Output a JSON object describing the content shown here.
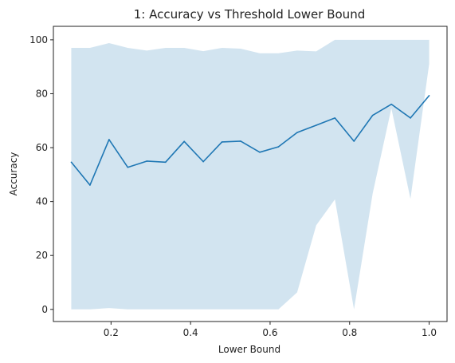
{
  "chart_data": {
    "type": "line",
    "title": "1: Accuracy vs Threshold Lower Bound",
    "xlabel": "Lower Bound",
    "ylabel": "Accuracy",
    "xlim": [
      0.055,
      1.045
    ],
    "ylim": [
      -4.5,
      105
    ],
    "xticks": [
      0.2,
      0.4,
      0.6,
      0.8,
      1.0
    ],
    "xtick_labels": [
      "0.2",
      "0.4",
      "0.6",
      "0.8",
      "1.0"
    ],
    "yticks": [
      0,
      20,
      40,
      60,
      80,
      100
    ],
    "ytick_labels": [
      "0",
      "20",
      "40",
      "60",
      "80",
      "100"
    ],
    "grid": false,
    "colors": {
      "line": "#1f77b4",
      "band": "#1f77b4",
      "band_opacity": 0.2
    },
    "x": [
      0.1,
      0.147,
      0.195,
      0.242,
      0.29,
      0.337,
      0.384,
      0.432,
      0.479,
      0.526,
      0.574,
      0.621,
      0.668,
      0.716,
      0.763,
      0.811,
      0.858,
      0.905,
      0.953,
      1.0
    ],
    "series": [
      {
        "values": [
          54.6,
          46.1,
          63.0,
          52.7,
          55.0,
          54.6,
          62.3,
          54.8,
          62.1,
          62.4,
          58.3,
          60.3,
          65.6,
          68.3,
          71.0,
          62.4,
          72.0,
          76.1,
          71.0,
          79.3
        ],
        "lower": [
          0,
          0,
          0.5,
          0,
          0,
          0,
          0,
          0,
          0,
          0,
          0,
          0,
          6.3,
          31.2,
          40.8,
          0,
          43.0,
          74.6,
          41.0,
          91.0
        ],
        "upper": [
          97.0,
          97.0,
          98.8,
          97.0,
          96.0,
          97.0,
          97.0,
          95.8,
          97.0,
          96.7,
          95.0,
          95.0,
          96.0,
          95.7,
          100,
          100,
          100,
          100,
          100,
          100
        ]
      }
    ]
  }
}
